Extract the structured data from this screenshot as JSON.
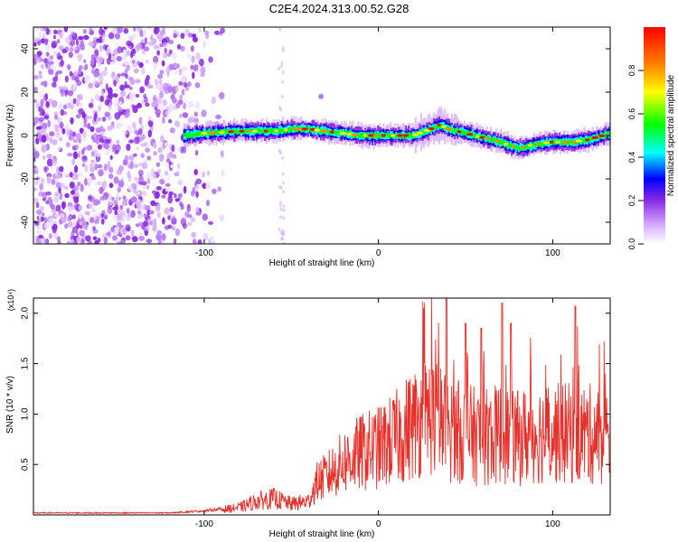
{
  "title": "C2E4.2024.313.00.52.G28",
  "chart_data": [
    {
      "type": "heatmap",
      "xlabel": "Height of straight line (km)",
      "ylabel": "Frequency (Hz)",
      "xlim": [
        -198,
        133
      ],
      "ylim": [
        -50,
        50
      ],
      "xticks": [
        -100,
        0,
        100
      ],
      "yticks": [
        -40,
        -20,
        0,
        20,
        40
      ],
      "colorbar": {
        "label": "Normalized spectral amplitude",
        "range": [
          0,
          1
        ],
        "ticks": [
          "0.0",
          "0.2",
          "0.4",
          "0.6",
          "0.8"
        ],
        "colors": [
          "#ffffff",
          "#d9b3ff",
          "#8a2be2",
          "#0000ff",
          "#00ffff",
          "#00ff00",
          "#ffff00",
          "#ff8800",
          "#ff0000"
        ]
      },
      "ridge": {
        "description_points_x": [
          -112,
          -100,
          -80,
          -60,
          -50,
          -40,
          -30,
          -20,
          -10,
          0,
          10,
          20,
          30,
          35,
          40,
          50,
          60,
          70,
          80,
          90,
          100,
          110,
          120,
          133
        ],
        "frequency_hz": [
          0,
          1,
          2,
          2,
          3,
          3,
          2,
          1,
          0,
          0,
          0,
          0,
          3,
          5,
          3,
          1,
          -1,
          -3,
          -6,
          -4,
          -3,
          -3,
          -2,
          1
        ]
      },
      "noise_region_x": [
        -198,
        -95
      ]
    },
    {
      "type": "line",
      "xlabel": "Height of straight line (km)",
      "ylabel": "SNR (10 * v/v)",
      "y_multiplier": "(x10⁴)",
      "xlim": [
        -198,
        133
      ],
      "ylim": [
        0,
        2.15
      ],
      "xticks": [
        -100,
        0,
        100
      ],
      "yticks": [
        0.5,
        1.0,
        1.5,
        2.0
      ],
      "ytick_labels": [
        "0.5",
        "1.0",
        "1.5",
        "2.0"
      ],
      "series_color": "#e8302a",
      "envelope": {
        "x": [
          -198,
          -120,
          -100,
          -80,
          -70,
          -60,
          -50,
          -40,
          -35,
          -30,
          -20,
          -10,
          0,
          10,
          20,
          30,
          40,
          50,
          60,
          70,
          80,
          90,
          100,
          110,
          120,
          133
        ],
        "y": [
          0.02,
          0.02,
          0.04,
          0.08,
          0.15,
          0.18,
          0.12,
          0.15,
          0.35,
          0.4,
          0.55,
          0.65,
          0.7,
          0.8,
          0.95,
          1.05,
          0.9,
          0.85,
          0.8,
          0.85,
          0.8,
          0.85,
          0.85,
          0.85,
          0.85,
          0.8
        ]
      },
      "peaks": [
        {
          "x": 39,
          "y": 2.15
        },
        {
          "x": 50,
          "y": 1.9
        },
        {
          "x": 59,
          "y": 1.85
        },
        {
          "x": 71,
          "y": 2.1
        },
        {
          "x": 76,
          "y": 1.9
        },
        {
          "x": 113,
          "y": 2.07
        }
      ]
    }
  ]
}
